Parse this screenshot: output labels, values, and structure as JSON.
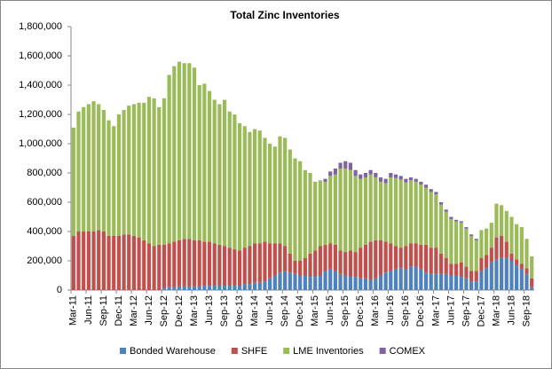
{
  "chart_data": {
    "type": "stacked_bar",
    "title": "Total Zinc Inventories",
    "categories": [
      "Mar-11",
      null,
      null,
      "Jun-11",
      null,
      null,
      "Sep-11",
      null,
      null,
      "Dec-11",
      null,
      null,
      "Mar-12",
      null,
      null,
      "Jun-12",
      null,
      null,
      "Sep-12",
      null,
      null,
      "Dec-12",
      null,
      null,
      "Mar-13",
      null,
      null,
      "Jun-13",
      null,
      null,
      "Sep-13",
      null,
      null,
      "Dec-13",
      null,
      null,
      "Mar-14",
      null,
      null,
      "Jun-14",
      null,
      null,
      "Sep-14",
      null,
      null,
      "Dec-14",
      null,
      null,
      "Mar-15",
      null,
      null,
      "Jun-15",
      null,
      null,
      "Sep-15",
      null,
      null,
      "Dec-15",
      null,
      null,
      "Mar-16",
      null,
      null,
      "Jun-16",
      null,
      null,
      "Sep-16",
      null,
      null,
      "Dec-16",
      null,
      null,
      "Mar-17",
      null,
      null,
      "Jun-17",
      null,
      null,
      "Sep-17",
      null,
      null,
      "Dec-17",
      null,
      null,
      "Mar-18",
      null,
      null,
      "Jun-18",
      null,
      null,
      "Sep-18",
      null
    ],
    "series": [
      {
        "name": "Bonded Warehouse",
        "color": "#4f81bd",
        "values": [
          0,
          0,
          0,
          0,
          0,
          0,
          0,
          0,
          0,
          0,
          0,
          0,
          0,
          0,
          0,
          0,
          0,
          0,
          15000,
          20000,
          20000,
          25000,
          25000,
          25000,
          25000,
          25000,
          30000,
          30000,
          30000,
          30000,
          30000,
          30000,
          30000,
          30000,
          40000,
          40000,
          50000,
          50000,
          60000,
          80000,
          100000,
          120000,
          130000,
          120000,
          110000,
          100000,
          100000,
          90000,
          90000,
          100000,
          130000,
          140000,
          130000,
          110000,
          100000,
          90000,
          90000,
          80000,
          80000,
          70000,
          80000,
          100000,
          120000,
          130000,
          140000,
          150000,
          140000,
          160000,
          160000,
          140000,
          120000,
          110000,
          110000,
          110000,
          110000,
          100000,
          100000,
          90000,
          80000,
          60000,
          60000,
          130000,
          150000,
          190000,
          210000,
          220000,
          220000,
          200000,
          170000,
          140000,
          110000,
          20000
        ]
      },
      {
        "name": "SHFE",
        "color": "#c0504d",
        "values": [
          370000,
          400000,
          400000,
          400000,
          400000,
          410000,
          400000,
          370000,
          370000,
          370000,
          380000,
          380000,
          370000,
          360000,
          340000,
          320000,
          300000,
          310000,
          295000,
          300000,
          310000,
          315000,
          325000,
          325000,
          315000,
          315000,
          300000,
          300000,
          290000,
          280000,
          270000,
          260000,
          250000,
          240000,
          250000,
          260000,
          270000,
          270000,
          270000,
          240000,
          220000,
          200000,
          170000,
          130000,
          90000,
          100000,
          120000,
          160000,
          180000,
          200000,
          180000,
          180000,
          180000,
          160000,
          160000,
          180000,
          170000,
          210000,
          230000,
          260000,
          260000,
          240000,
          210000,
          190000,
          160000,
          140000,
          160000,
          160000,
          160000,
          170000,
          190000,
          180000,
          180000,
          140000,
          110000,
          80000,
          80000,
          100000,
          80000,
          70000,
          70000,
          90000,
          90000,
          100000,
          150000,
          150000,
          110000,
          50000,
          40000,
          40000,
          40000,
          60000
        ]
      },
      {
        "name": "LME Inventories",
        "color": "#9bbb59",
        "values": [
          740000,
          820000,
          850000,
          870000,
          890000,
          860000,
          830000,
          790000,
          750000,
          830000,
          850000,
          880000,
          900000,
          920000,
          940000,
          1000000,
          1010000,
          940000,
          1000000,
          1150000,
          1200000,
          1220000,
          1200000,
          1200000,
          1180000,
          1060000,
          1080000,
          1030000,
          980000,
          960000,
          1000000,
          930000,
          920000,
          870000,
          830000,
          780000,
          780000,
          770000,
          710000,
          680000,
          660000,
          730000,
          740000,
          710000,
          700000,
          680000,
          600000,
          550000,
          470000,
          450000,
          430000,
          460000,
          480000,
          560000,
          570000,
          550000,
          520000,
          470000,
          460000,
          460000,
          430000,
          400000,
          400000,
          450000,
          465000,
          465000,
          435000,
          430000,
          420000,
          410000,
          390000,
          380000,
          365000,
          335000,
          315000,
          305000,
          290000,
          270000,
          260000,
          240000,
          210000,
          190000,
          180000,
          170000,
          230000,
          210000,
          210000,
          250000,
          240000,
          250000,
          200000,
          150000
        ]
      },
      {
        "name": "COMEX",
        "color": "#8064a2",
        "values": [
          0,
          0,
          0,
          0,
          0,
          0,
          0,
          0,
          0,
          0,
          0,
          0,
          0,
          0,
          0,
          0,
          0,
          0,
          0,
          0,
          0,
          0,
          0,
          0,
          0,
          0,
          0,
          0,
          0,
          0,
          0,
          0,
          0,
          0,
          0,
          0,
          0,
          0,
          0,
          0,
          0,
          0,
          0,
          0,
          0,
          0,
          0,
          0,
          0,
          0,
          20000,
          30000,
          40000,
          40000,
          50000,
          50000,
          40000,
          30000,
          30000,
          30000,
          30000,
          30000,
          30000,
          30000,
          25000,
          25000,
          25000,
          20000,
          20000,
          20000,
          20000,
          20000,
          15000,
          15000,
          15000,
          15000,
          10000,
          10000,
          10000,
          10000,
          10000,
          0,
          0,
          0,
          0,
          0,
          0,
          0,
          0,
          0,
          0,
          0
        ]
      }
    ],
    "ylim": [
      0,
      1800000
    ],
    "yticks": [
      0,
      {
        "value": 200000,
        "label": "200,000"
      },
      {
        "value": 400000,
        "label": "400,000"
      },
      {
        "value": 600000,
        "label": "600,000"
      },
      {
        "value": 800000,
        "label": "800,000"
      },
      {
        "value": 1000000,
        "label": "1,000,000"
      },
      {
        "value": 1200000,
        "label": "1,200,000"
      },
      {
        "value": 1400000,
        "label": "1,400,000"
      },
      {
        "value": 1600000,
        "label": "1,600,000"
      },
      {
        "value": 1800000,
        "label": "1,800,000"
      }
    ],
    "grid": false,
    "legend": "bottom"
  }
}
